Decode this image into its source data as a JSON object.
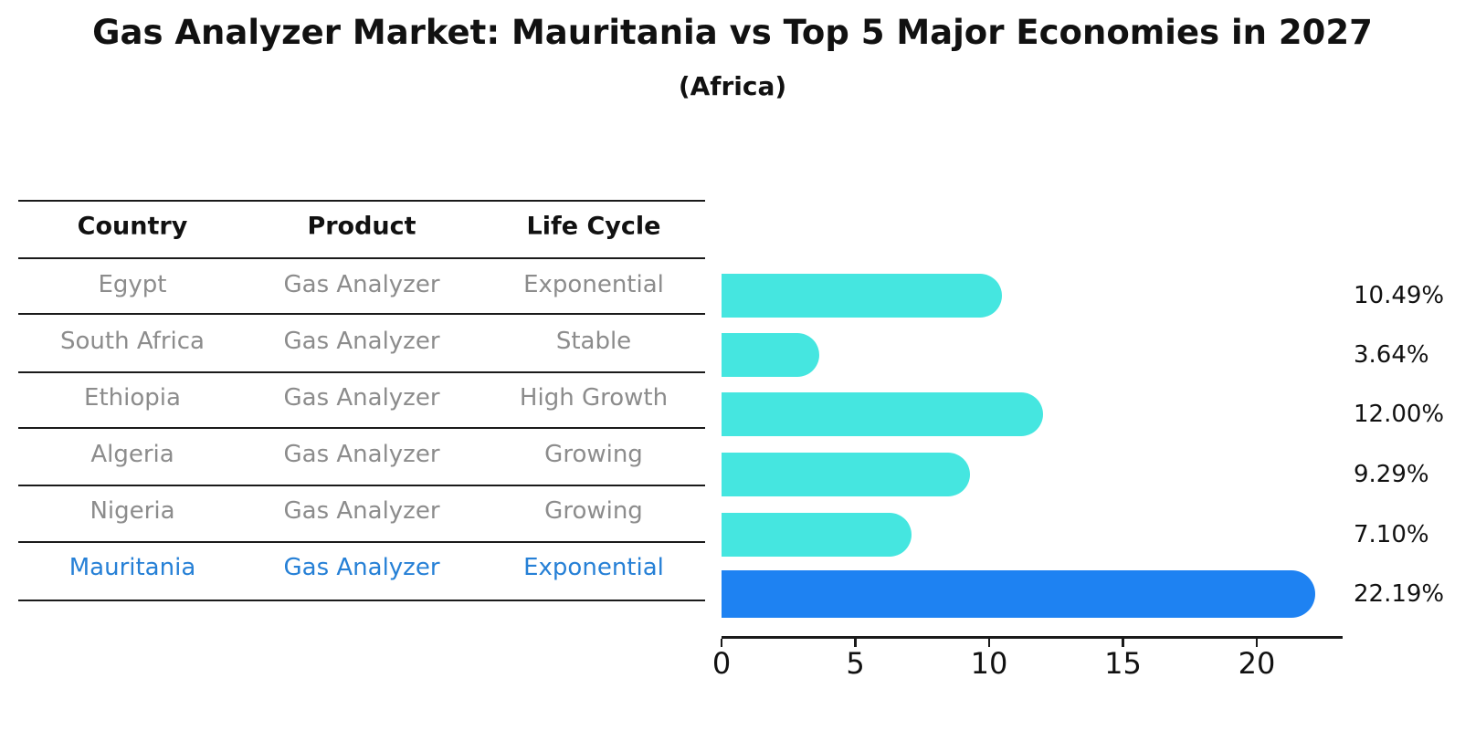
{
  "chart_data": {
    "type": "bar",
    "orientation": "horizontal",
    "title": "Gas Analyzer Market: Mauritania vs Top 5 Major Economies in 2027",
    "subtitle": "(Africa)",
    "categories": [
      "Egypt",
      "South Africa",
      "Ethiopia",
      "Algeria",
      "Nigeria",
      "Mauritania"
    ],
    "values": [
      10.49,
      3.64,
      12.0,
      9.29,
      7.1,
      22.19
    ],
    "value_labels": [
      "10.49%",
      "3.64%",
      "12.00%",
      "9.29%",
      "7.10%",
      "22.19%"
    ],
    "highlight_index": 5,
    "xlabel": "",
    "ylabel": "",
    "xlim": [
      0,
      23.2
    ],
    "x_ticks": [
      0,
      5,
      10,
      15,
      20
    ],
    "x_tick_labels": [
      "0",
      "5",
      "10",
      "15",
      "20"
    ],
    "grid": false,
    "legend": null,
    "colors": {
      "bar": "#45E6E0",
      "highlight_bar": "#1E82F2",
      "highlight_text": "#2680D6",
      "row_text": "#8C8C8C",
      "heading_text": "#111111",
      "line": "#1a1a1a"
    }
  },
  "table": {
    "headers": [
      "Country",
      "Product",
      "Life Cycle"
    ],
    "rows": [
      {
        "country": "Egypt",
        "product": "Gas Analyzer",
        "life_cycle": "Exponential",
        "highlight": false
      },
      {
        "country": "South Africa",
        "product": "Gas Analyzer",
        "life_cycle": "Stable",
        "highlight": false
      },
      {
        "country": "Ethiopia",
        "product": "Gas Analyzer",
        "life_cycle": "High Growth",
        "highlight": false
      },
      {
        "country": "Algeria",
        "product": "Gas Analyzer",
        "life_cycle": "Growing",
        "highlight": false
      },
      {
        "country": "Nigeria",
        "product": "Gas Analyzer",
        "life_cycle": "Growing",
        "highlight": false
      },
      {
        "country": "Mauritania",
        "product": "Gas Analyzer",
        "life_cycle": "Exponential",
        "highlight": true
      }
    ]
  }
}
